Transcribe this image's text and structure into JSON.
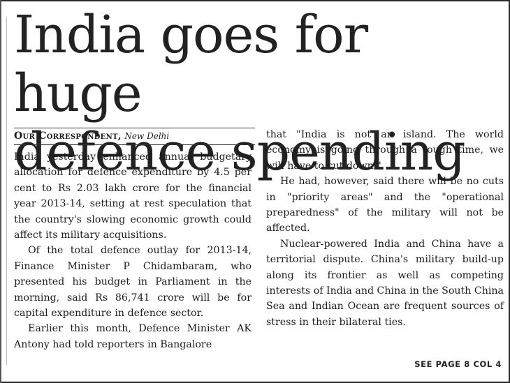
{
  "headline": {
    "line1": "India goes for huge",
    "line2": "defence spending"
  },
  "byline": {
    "author": "Our Correspondent,",
    "place": "New Delhi"
  },
  "column1": {
    "p1": "India yesterday enhanced annual budgetary allocation for defence expenditure by 4.5 per cent to Rs 2.03 lakh crore for the financial year 2013-14, setting at rest speculation that the country's slowing economic growth could affect its military acquisitions.",
    "p2": "Of the total defence outlay for 2013-14, Finance Minister P Chidambaram, who presented his budget in Parliament in the morning, said Rs 86,741 crore will be for capital expenditure in defence sector.",
    "p3": "Earlier this month, Defence Minister AK Antony had told reporters in Bangalore"
  },
  "column2": {
    "p1": "that \"India is not an island. The world economy is going through a tough time, we will have to cut down.\"",
    "p2": "He had, however, said there will be no cuts in \"priority areas\" and the \"operational preparedness\" of the military will not be affected.",
    "p3": "Nuclear-powered India and China have a territorial dispute. China's military build-up along its frontier as well as competing interests of India and China in the South China Sea and Indian Ocean are frequent sources of stress in their bilateral ties."
  },
  "jump": "SEE PAGE 8 COL 4"
}
